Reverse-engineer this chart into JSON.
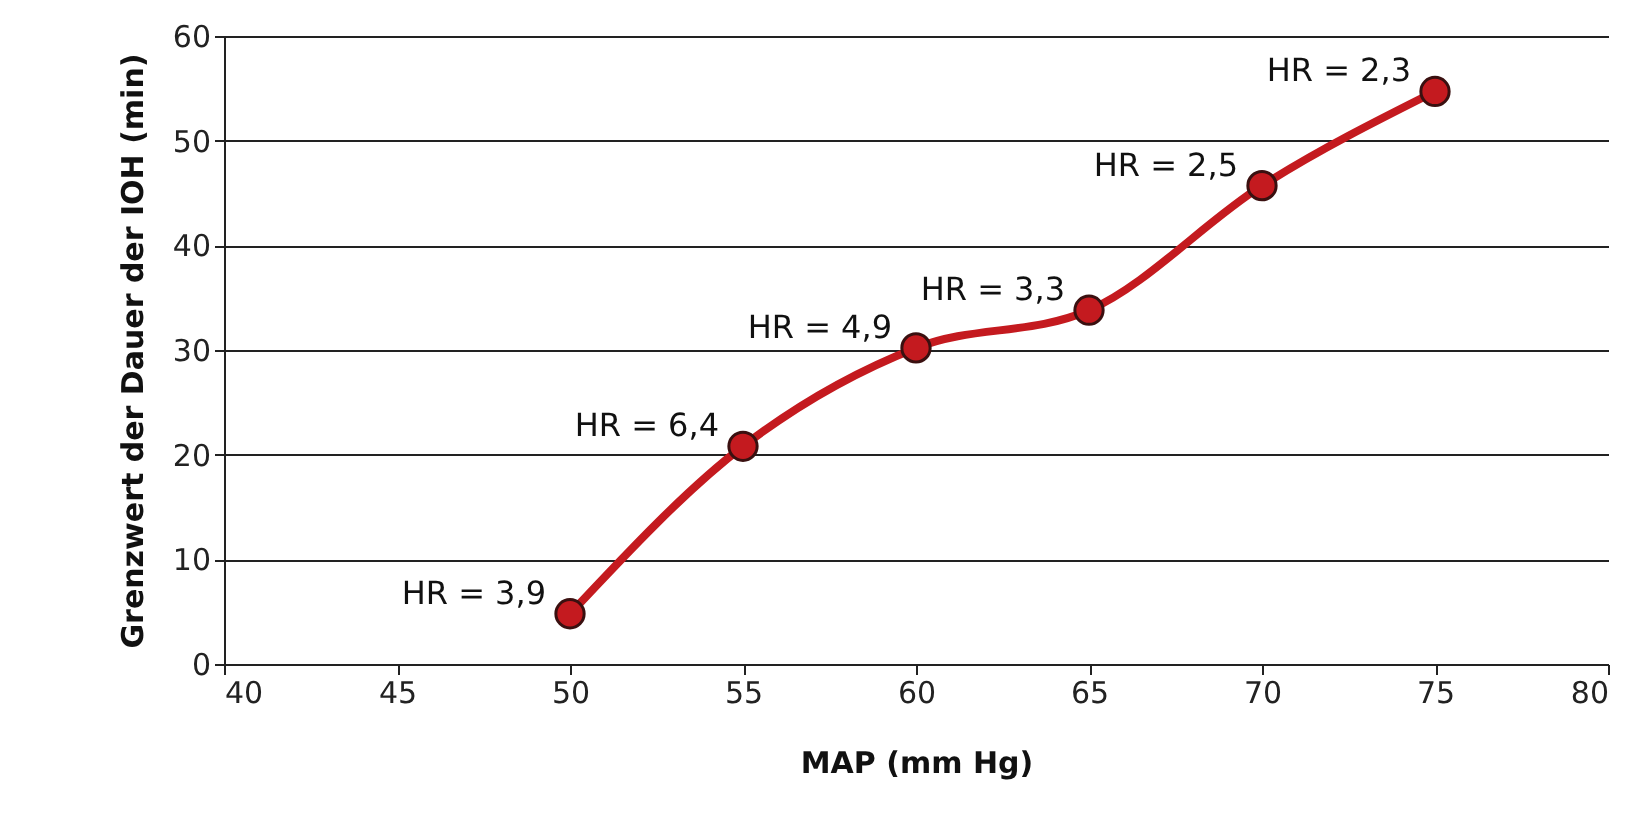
{
  "chart_data": {
    "type": "line",
    "xlabel": "MAP (mm Hg)",
    "ylabel": "Grenzwert der Dauer der IOH (min)",
    "x": [
      50,
      55,
      60,
      65,
      70,
      75
    ],
    "series": [
      {
        "color": "#c41a1f",
        "values": [
          4.8,
          20.8,
          30.2,
          33.8,
          45.7,
          54.7
        ]
      }
    ],
    "xlim": [
      40,
      80
    ],
    "xticks": [
      40,
      45,
      50,
      55,
      60,
      65,
      70,
      75,
      80
    ],
    "ylim": [
      0,
      60
    ],
    "yticks": [
      0,
      10,
      20,
      30,
      40,
      50,
      60
    ],
    "grid": "y",
    "marker": "circle",
    "line_style": "solid",
    "annotations": [
      {
        "text": "HR = 3,9",
        "x": 50,
        "y": 4.8
      },
      {
        "text": "HR = 6,4",
        "x": 55,
        "y": 20.8
      },
      {
        "text": "HR = 4,9",
        "x": 60,
        "y": 30.2
      },
      {
        "text": "HR = 3,3",
        "x": 65,
        "y": 33.8
      },
      {
        "text": "HR = 2,5",
        "x": 70,
        "y": 45.7
      },
      {
        "text": "HR = 2,3",
        "x": 75,
        "y": 54.7
      }
    ]
  }
}
